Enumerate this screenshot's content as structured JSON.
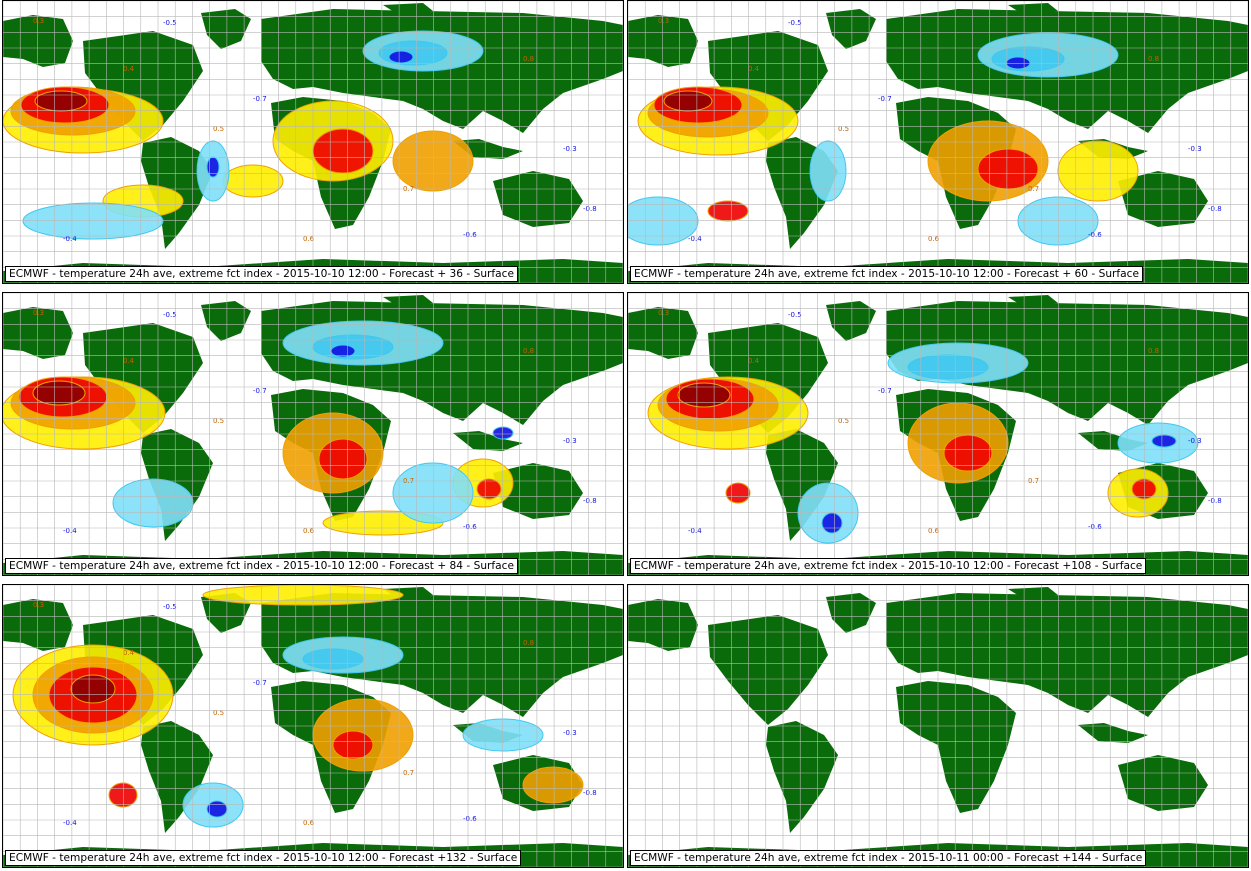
{
  "colors": {
    "land": "#0a6b0a",
    "grid": "#b8b8b8",
    "ocean": "#ffffff",
    "warm_light": "#ffee00",
    "warm_orange": "#f0a000",
    "warm_red": "#ee0000",
    "warm_dark": "#8b0000",
    "cold_light": "#7fe0f8",
    "cold_cyan": "#40c8f0",
    "cold_blue": "#1010e0"
  },
  "panels": [
    {
      "caption": "ECMWF - temperature 24h ave, extreme fct index - 2015-10-10 12:00 - Forecast + 36 - Surface",
      "has_data": true
    },
    {
      "caption": "ECMWF - temperature 24h ave, extreme fct index - 2015-10-10 12:00 - Forecast + 60 - Surface",
      "has_data": true
    },
    {
      "caption": "ECMWF - temperature 24h ave, extreme fct index - 2015-10-10 12:00 - Forecast + 84 - Surface",
      "has_data": true
    },
    {
      "caption": "ECMWF - temperature 24h ave, extreme fct index - 2015-10-10 12:00 - Forecast +108 - Surface",
      "has_data": true
    },
    {
      "caption": "ECMWF - temperature 24h ave, extreme fct index - 2015-10-10 12:00 - Forecast +132 - Surface",
      "has_data": true
    },
    {
      "caption": "ECMWF - temperature 24h ave, extreme fct index - 2015-10-11 00:00 - Forecast +144 - Surface",
      "has_data": false
    }
  ],
  "contour_labels": [
    "0.3",
    "0.4",
    "0.5",
    "0.6",
    "0.7",
    "0.8",
    "-0.3",
    "-0.4",
    "-0.5",
    "-0.6",
    "-0.7",
    "-0.8"
  ]
}
